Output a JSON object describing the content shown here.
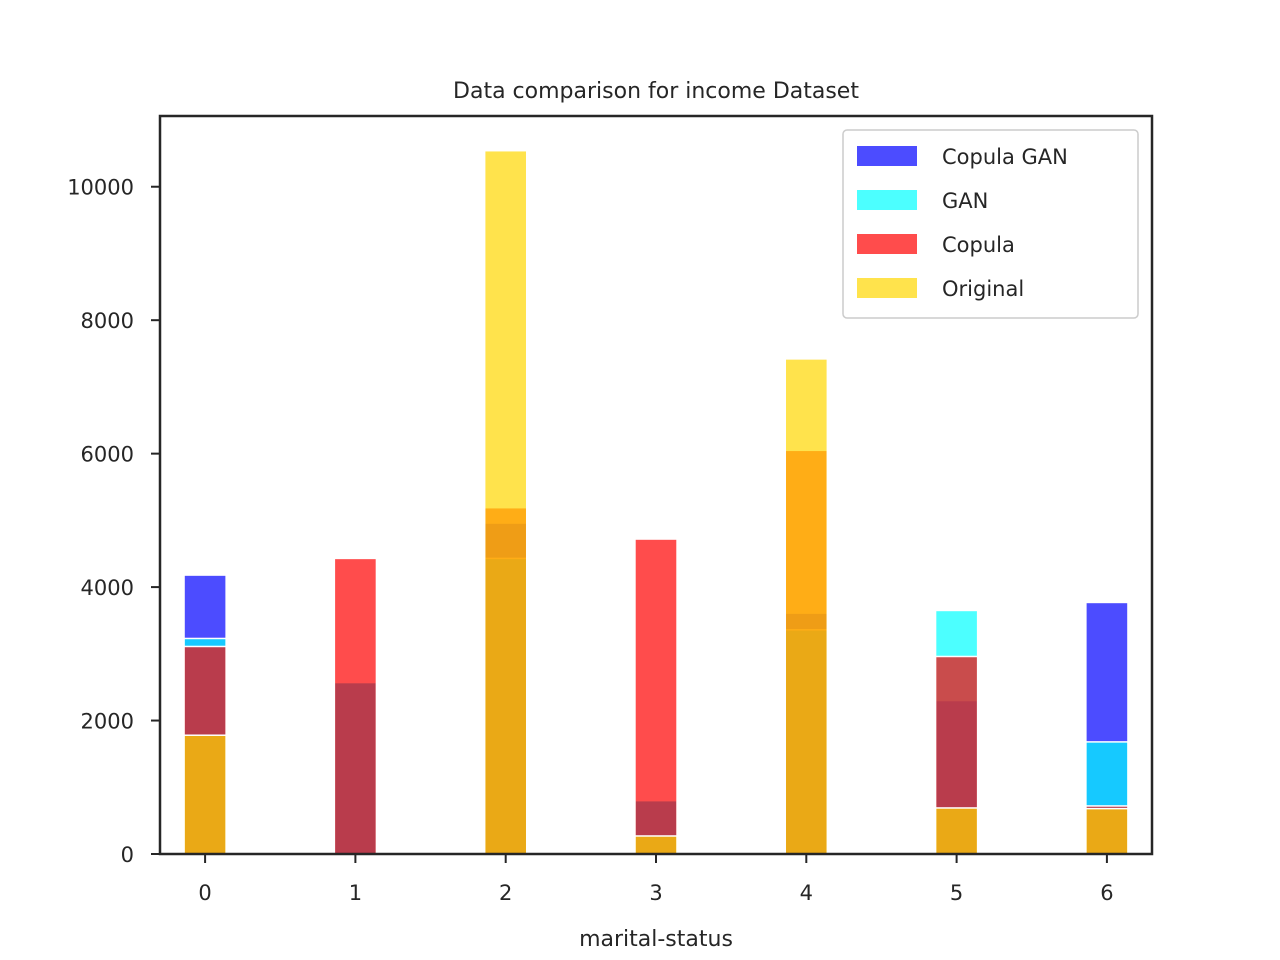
{
  "chart_data": {
    "type": "bar",
    "title": "Data comparison for income Dataset",
    "xlabel": "marital-status",
    "ylabel": "",
    "xlim": [
      -0.3,
      6.3
    ],
    "ylim": [
      0,
      11060
    ],
    "xticks": [
      0,
      1,
      2,
      3,
      4,
      5,
      6
    ],
    "yticks": [
      0,
      2000,
      4000,
      6000,
      8000,
      10000
    ],
    "bar_width": 0.28,
    "legend_position": "top-right",
    "grid": false,
    "series": [
      {
        "name": "Copula GAN",
        "color": "#0000ff",
        "opacity": 0.7,
        "x": [
          0,
          1,
          2,
          3,
          4,
          5,
          6
        ],
        "values": [
          4180,
          2570,
          4960,
          800,
          3610,
          2300,
          3770
        ]
      },
      {
        "name": "GAN",
        "color": "#00ffff",
        "opacity": 0.7,
        "x": [
          0,
          1,
          2,
          3,
          4,
          5,
          6
        ],
        "values": [
          3230,
          2570,
          4430,
          800,
          3360,
          3650,
          1680
        ]
      },
      {
        "name": "Copula",
        "color": "#ff0000",
        "opacity": 0.7,
        "x": [
          0,
          1,
          2,
          3,
          4,
          5,
          6
        ],
        "values": [
          3110,
          4430,
          5190,
          4720,
          6050,
          2960,
          720
        ]
      },
      {
        "name": "Original",
        "color": "#ffd700",
        "opacity": 0.7,
        "x": [
          0,
          1,
          2,
          3,
          4,
          5,
          6
        ],
        "values": [
          1780,
          0,
          10540,
          270,
          7420,
          690,
          680
        ]
      }
    ]
  }
}
